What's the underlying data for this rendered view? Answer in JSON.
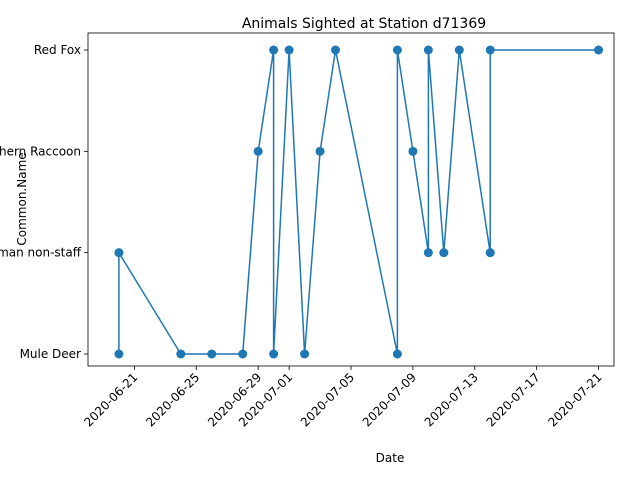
{
  "chart_data": {
    "type": "line",
    "title": "Animals Sighted at Station d71369",
    "xlabel": "Date",
    "ylabel": "Common.Name",
    "categories_y": [
      "Mule Deer",
      "Human non-staff",
      "Northern Raccoon",
      "Red Fox"
    ],
    "x_ticks": [
      "2020-06-21",
      "2020-06-25",
      "2020-06-29",
      "2020-07-01",
      "2020-07-05",
      "2020-07-09",
      "2020-07-13",
      "2020-07-17",
      "2020-07-21"
    ],
    "xlim": [
      "2020-06-18",
      "2020-07-22"
    ],
    "grid": false,
    "legend": "none",
    "color": "#1f77b4",
    "series": [
      {
        "points": [
          {
            "x": "2020-06-20",
            "y": "Mule Deer"
          },
          {
            "x": "2020-06-20",
            "y": "Human non-staff"
          },
          {
            "x": "2020-06-24",
            "y": "Mule Deer"
          },
          {
            "x": "2020-06-26",
            "y": "Mule Deer"
          },
          {
            "x": "2020-06-28",
            "y": "Mule Deer"
          },
          {
            "x": "2020-06-29",
            "y": "Northern Raccoon"
          },
          {
            "x": "2020-06-30",
            "y": "Red Fox"
          },
          {
            "x": "2020-06-30",
            "y": "Mule Deer"
          },
          {
            "x": "2020-07-01",
            "y": "Red Fox"
          },
          {
            "x": "2020-07-02",
            "y": "Mule Deer"
          },
          {
            "x": "2020-07-03",
            "y": "Northern Raccoon"
          },
          {
            "x": "2020-07-04",
            "y": "Red Fox"
          },
          {
            "x": "2020-07-08",
            "y": "Mule Deer"
          },
          {
            "x": "2020-07-08",
            "y": "Red Fox"
          },
          {
            "x": "2020-07-09",
            "y": "Northern Raccoon"
          },
          {
            "x": "2020-07-10",
            "y": "Human non-staff"
          },
          {
            "x": "2020-07-10",
            "y": "Red Fox"
          },
          {
            "x": "2020-07-11",
            "y": "Human non-staff"
          },
          {
            "x": "2020-07-12",
            "y": "Red Fox"
          },
          {
            "x": "2020-07-14",
            "y": "Human non-staff"
          },
          {
            "x": "2020-07-14",
            "y": "Red Fox"
          },
          {
            "x": "2020-07-21",
            "y": "Red Fox"
          }
        ]
      }
    ]
  }
}
